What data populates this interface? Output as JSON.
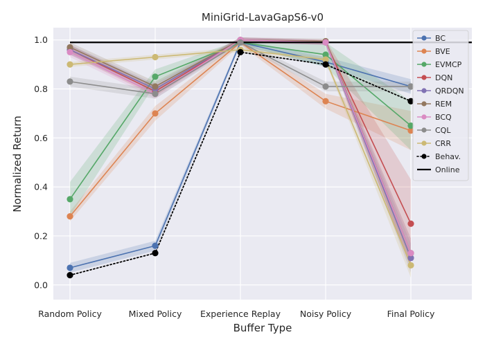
{
  "chart_data": {
    "type": "line",
    "title": "MiniGrid-LavaGapS6-v0",
    "xlabel": "Buffer Type",
    "ylabel": "Normalized Return",
    "categories": [
      "Random Policy",
      "Mixed Policy",
      "Experience Replay",
      "Noisy Policy",
      "Final Policy"
    ],
    "ylim": [
      -0.06,
      1.05
    ],
    "yticks": [
      "0.0",
      "0.2",
      "0.4",
      "0.6",
      "0.8",
      "1.0"
    ],
    "grid": true,
    "legend_position": "top-right",
    "online_value": 0.99,
    "series": [
      {
        "name": "BC",
        "color": "#4c72b0",
        "style": "solid",
        "values": [
          0.07,
          0.16,
          0.99,
          0.91,
          0.81
        ],
        "band": [
          0.02,
          0.02,
          0.01,
          0.02,
          0.03
        ]
      },
      {
        "name": "BVE",
        "color": "#dd8452",
        "style": "solid",
        "values": [
          0.28,
          0.7,
          0.99,
          0.75,
          0.63
        ],
        "band": [
          0.02,
          0.03,
          0.01,
          0.03,
          0.08
        ]
      },
      {
        "name": "EVMCP",
        "color": "#55a868",
        "style": "solid",
        "values": [
          0.35,
          0.85,
          0.99,
          0.94,
          0.65
        ],
        "band": [
          0.07,
          0.03,
          0.01,
          0.05,
          0.1
        ]
      },
      {
        "name": "DQN",
        "color": "#c44e52",
        "style": "solid",
        "values": [
          0.96,
          0.79,
          1.0,
          0.99,
          0.25
        ],
        "band": [
          0.02,
          0.02,
          0.01,
          0.01,
          0.18
        ]
      },
      {
        "name": "QRDQN",
        "color": "#8172b3",
        "style": "solid",
        "values": [
          0.96,
          0.8,
          1.0,
          0.99,
          0.11
        ],
        "band": [
          0.02,
          0.02,
          0.01,
          0.01,
          0.06
        ]
      },
      {
        "name": "REM",
        "color": "#937860",
        "style": "solid",
        "values": [
          0.97,
          0.81,
          1.0,
          0.995,
          0.13
        ],
        "band": [
          0.02,
          0.02,
          0.01,
          0.01,
          0.06
        ]
      },
      {
        "name": "BCQ",
        "color": "#da8bc3",
        "style": "solid",
        "values": [
          0.95,
          0.78,
          1.0,
          0.99,
          0.13
        ],
        "band": [
          0.02,
          0.02,
          0.01,
          0.01,
          0.06
        ]
      },
      {
        "name": "CQL",
        "color": "#8c8c8c",
        "style": "solid",
        "values": [
          0.83,
          0.78,
          0.99,
          0.81,
          0.81
        ],
        "band": [
          0.02,
          0.02,
          0.01,
          0.02,
          0.02
        ]
      },
      {
        "name": "CRR",
        "color": "#ccb974",
        "style": "solid",
        "values": [
          0.9,
          0.93,
          0.96,
          0.92,
          0.08
        ],
        "band": [
          0.01,
          0.01,
          0.01,
          0.01,
          0.05
        ]
      },
      {
        "name": "Behav.",
        "color": "#000000",
        "style": "dotted",
        "values": [
          0.04,
          0.13,
          0.95,
          0.9,
          0.75
        ],
        "band": null
      }
    ],
    "online_label": "Online"
  }
}
